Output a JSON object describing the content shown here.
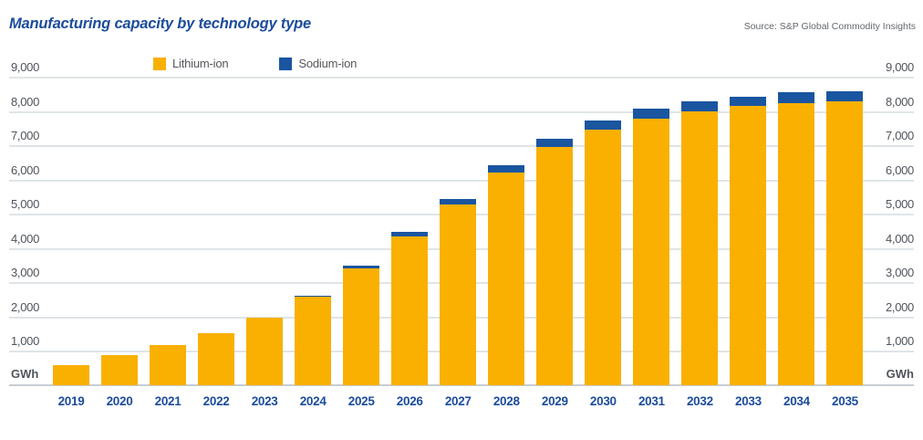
{
  "header": {
    "title": "Manufacturing capacity by technology type",
    "source": "Source: S&P Global Commodity Insights"
  },
  "legend": {
    "items": [
      {
        "label": "Lithium-ion",
        "color": "#f9b000"
      },
      {
        "label": "Sodium-ion",
        "color": "#1a55a0"
      }
    ]
  },
  "axes": {
    "unit_label": "GWh",
    "y_tick_labels": [
      "9,000",
      "8,000",
      "7,000",
      "6,000",
      "5,000",
      "4,000",
      "3,000",
      "2,000",
      "1,000"
    ],
    "y_tick_values": [
      9000,
      8000,
      7000,
      6000,
      5000,
      4000,
      3000,
      2000,
      1000
    ]
  },
  "chart_data": {
    "type": "bar",
    "stacked": true,
    "title": "Manufacturing capacity by technology type",
    "categories": [
      "2019",
      "2020",
      "2021",
      "2022",
      "2023",
      "2024",
      "2025",
      "2026",
      "2027",
      "2028",
      "2029",
      "2030",
      "2031",
      "2032",
      "2033",
      "2034",
      "2035"
    ],
    "series": [
      {
        "name": "Lithium-ion",
        "color": "#f9b000",
        "values": [
          575,
          890,
          1160,
          1520,
          1980,
          2580,
          3420,
          4330,
          5270,
          6215,
          6955,
          7465,
          7785,
          7985,
          8155,
          8220,
          8275
        ]
      },
      {
        "name": "Sodium-ion",
        "color": "#1a55a0",
        "values": [
          0,
          0,
          0,
          0,
          0,
          40,
          65,
          135,
          175,
          195,
          240,
          265,
          280,
          305,
          270,
          325,
          305
        ]
      }
    ],
    "xlabel": "",
    "ylabel": "GWh",
    "ylim": [
      0,
      9000
    ],
    "grid": true,
    "legend_position": "top"
  },
  "colors": {
    "title_blue": "#1b4c9c",
    "axis_text_gray": "#4f545b",
    "gridline": "#e0e4e7",
    "baseline": "#c7cdd2"
  }
}
